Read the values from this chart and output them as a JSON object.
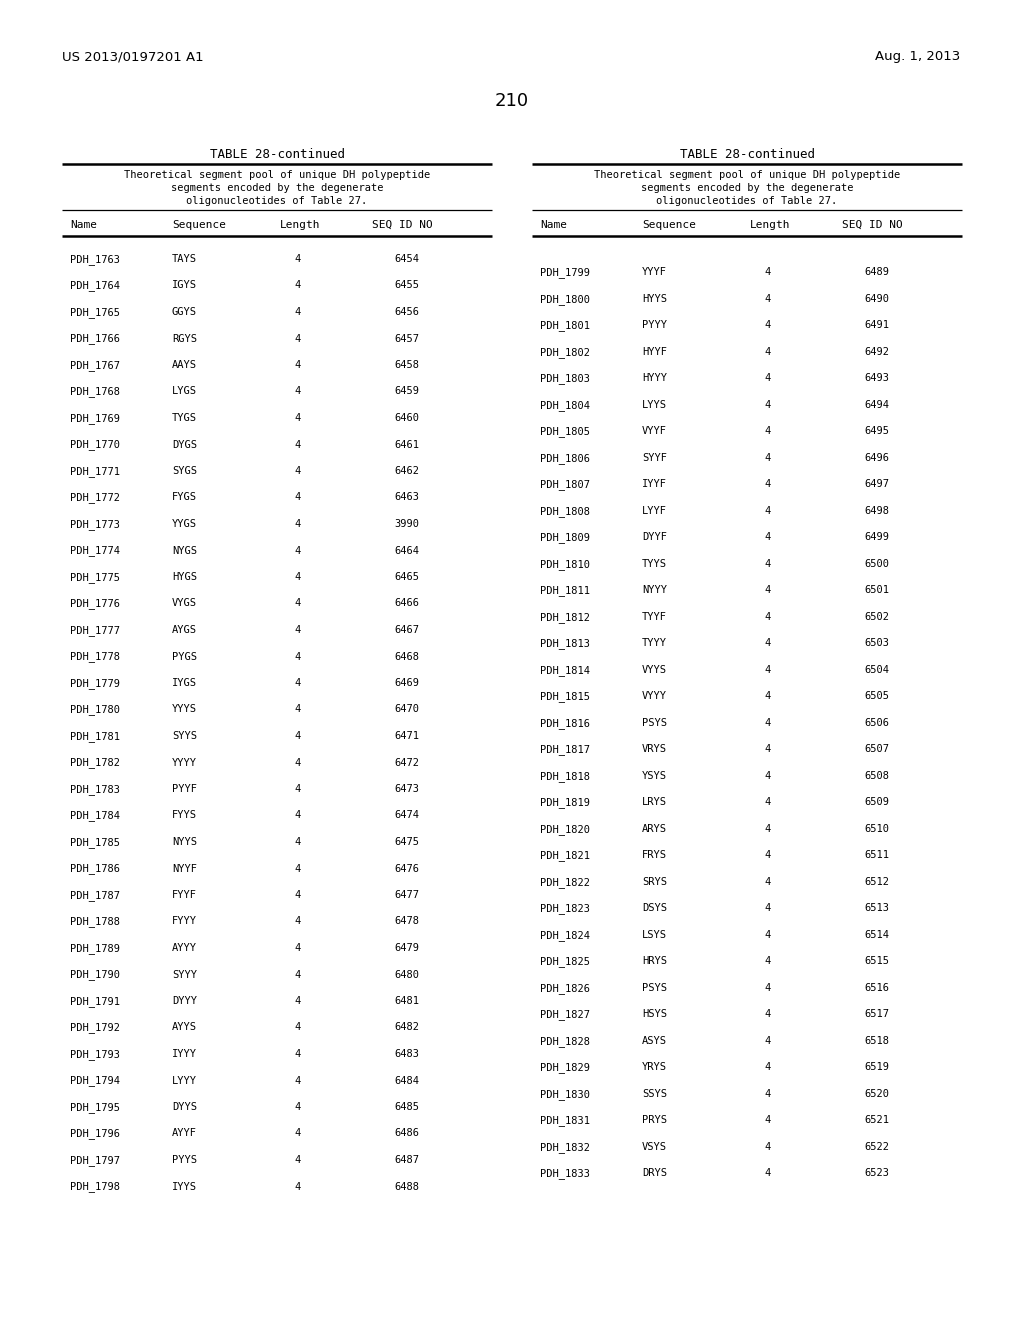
{
  "header_left": "US 2013/0197201 A1",
  "header_right": "Aug. 1, 2013",
  "page_number": "210",
  "table_title": "TABLE 28-continued",
  "table_subtitle_lines": [
    "Theoretical segment pool of unique DH polypeptide",
    "segments encoded by the degenerate",
    "oligonucleotides of Table 27."
  ],
  "col_headers": [
    "Name",
    "Sequence",
    "Length",
    "SEQ ID NO"
  ],
  "left_data": [
    [
      "PDH_1763",
      "TAYS",
      "4",
      "6454"
    ],
    [
      "PDH_1764",
      "IGYS",
      "4",
      "6455"
    ],
    [
      "PDH_1765",
      "GGYS",
      "4",
      "6456"
    ],
    [
      "PDH_1766",
      "RGYS",
      "4",
      "6457"
    ],
    [
      "PDH_1767",
      "AAYS",
      "4",
      "6458"
    ],
    [
      "PDH_1768",
      "LYGS",
      "4",
      "6459"
    ],
    [
      "PDH_1769",
      "TYGS",
      "4",
      "6460"
    ],
    [
      "PDH_1770",
      "DYGS",
      "4",
      "6461"
    ],
    [
      "PDH_1771",
      "SYGS",
      "4",
      "6462"
    ],
    [
      "PDH_1772",
      "FYGS",
      "4",
      "6463"
    ],
    [
      "PDH_1773",
      "YYGS",
      "4",
      "3990"
    ],
    [
      "PDH_1774",
      "NYGS",
      "4",
      "6464"
    ],
    [
      "PDH_1775",
      "HYGS",
      "4",
      "6465"
    ],
    [
      "PDH_1776",
      "VYGS",
      "4",
      "6466"
    ],
    [
      "PDH_1777",
      "AYGS",
      "4",
      "6467"
    ],
    [
      "PDH_1778",
      "PYGS",
      "4",
      "6468"
    ],
    [
      "PDH_1779",
      "IYGS",
      "4",
      "6469"
    ],
    [
      "PDH_1780",
      "YYYS",
      "4",
      "6470"
    ],
    [
      "PDH_1781",
      "SYYS",
      "4",
      "6471"
    ],
    [
      "PDH_1782",
      "YYYY",
      "4",
      "6472"
    ],
    [
      "PDH_1783",
      "PYYF",
      "4",
      "6473"
    ],
    [
      "PDH_1784",
      "FYYS",
      "4",
      "6474"
    ],
    [
      "PDH_1785",
      "NYYS",
      "4",
      "6475"
    ],
    [
      "PDH_1786",
      "NYYF",
      "4",
      "6476"
    ],
    [
      "PDH_1787",
      "FYYF",
      "4",
      "6477"
    ],
    [
      "PDH_1788",
      "FYYY",
      "4",
      "6478"
    ],
    [
      "PDH_1789",
      "AYYY",
      "4",
      "6479"
    ],
    [
      "PDH_1790",
      "SYYY",
      "4",
      "6480"
    ],
    [
      "PDH_1791",
      "DYYY",
      "4",
      "6481"
    ],
    [
      "PDH_1792",
      "AYYS",
      "4",
      "6482"
    ],
    [
      "PDH_1793",
      "IYYY",
      "4",
      "6483"
    ],
    [
      "PDH_1794",
      "LYYY",
      "4",
      "6484"
    ],
    [
      "PDH_1795",
      "DYYS",
      "4",
      "6485"
    ],
    [
      "PDH_1796",
      "AYYF",
      "4",
      "6486"
    ],
    [
      "PDH_1797",
      "PYYS",
      "4",
      "6487"
    ],
    [
      "PDH_1798",
      "IYYS",
      "4",
      "6488"
    ]
  ],
  "right_data": [
    [
      "PDH_1799",
      "YYYF",
      "4",
      "6489"
    ],
    [
      "PDH_1800",
      "HYYS",
      "4",
      "6490"
    ],
    [
      "PDH_1801",
      "PYYY",
      "4",
      "6491"
    ],
    [
      "PDH_1802",
      "HYYF",
      "4",
      "6492"
    ],
    [
      "PDH_1803",
      "HYYY",
      "4",
      "6493"
    ],
    [
      "PDH_1804",
      "LYYS",
      "4",
      "6494"
    ],
    [
      "PDH_1805",
      "VYYF",
      "4",
      "6495"
    ],
    [
      "PDH_1806",
      "SYYF",
      "4",
      "6496"
    ],
    [
      "PDH_1807",
      "IYYF",
      "4",
      "6497"
    ],
    [
      "PDH_1808",
      "LYYF",
      "4",
      "6498"
    ],
    [
      "PDH_1809",
      "DYYF",
      "4",
      "6499"
    ],
    [
      "PDH_1810",
      "TYYS",
      "4",
      "6500"
    ],
    [
      "PDH_1811",
      "NYYY",
      "4",
      "6501"
    ],
    [
      "PDH_1812",
      "TYYF",
      "4",
      "6502"
    ],
    [
      "PDH_1813",
      "TYYY",
      "4",
      "6503"
    ],
    [
      "PDH_1814",
      "VYYS",
      "4",
      "6504"
    ],
    [
      "PDH_1815",
      "VYYY",
      "4",
      "6505"
    ],
    [
      "PDH_1816",
      "PSYS",
      "4",
      "6506"
    ],
    [
      "PDH_1817",
      "VRYS",
      "4",
      "6507"
    ],
    [
      "PDH_1818",
      "YSYS",
      "4",
      "6508"
    ],
    [
      "PDH_1819",
      "LRYS",
      "4",
      "6509"
    ],
    [
      "PDH_1820",
      "ARYS",
      "4",
      "6510"
    ],
    [
      "PDH_1821",
      "FRYS",
      "4",
      "6511"
    ],
    [
      "PDH_1822",
      "SRYS",
      "4",
      "6512"
    ],
    [
      "PDH_1823",
      "DSYS",
      "4",
      "6513"
    ],
    [
      "PDH_1824",
      "LSYS",
      "4",
      "6514"
    ],
    [
      "PDH_1825",
      "HRYS",
      "4",
      "6515"
    ],
    [
      "PDH_1826",
      "PSYS",
      "4",
      "6516"
    ],
    [
      "PDH_1827",
      "HSYS",
      "4",
      "6517"
    ],
    [
      "PDH_1828",
      "ASYS",
      "4",
      "6518"
    ],
    [
      "PDH_1829",
      "YRYS",
      "4",
      "6519"
    ],
    [
      "PDH_1830",
      "SSYS",
      "4",
      "6520"
    ],
    [
      "PDH_1831",
      "PRYS",
      "4",
      "6521"
    ],
    [
      "PDH_1832",
      "VSYS",
      "4",
      "6522"
    ],
    [
      "PDH_1833",
      "DRYS",
      "4",
      "6523"
    ]
  ],
  "bg_color": "#ffffff",
  "text_color": "#000000"
}
